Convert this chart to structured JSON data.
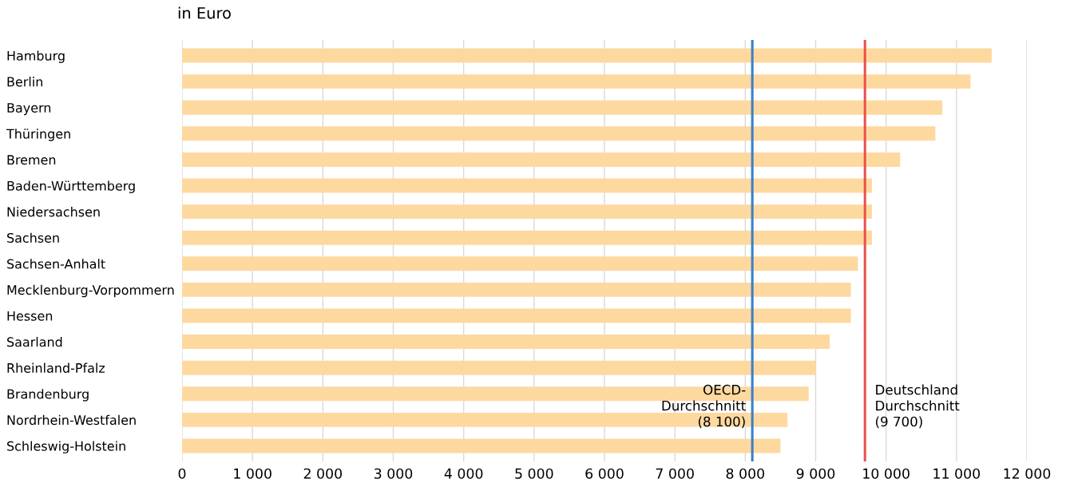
{
  "chart_data": {
    "type": "bar",
    "orientation": "horizontal",
    "title": "in Euro",
    "categories": [
      "Hamburg",
      "Berlin",
      "Bayern",
      "Thüringen",
      "Bremen",
      "Baden-Württemberg",
      "Niedersachsen",
      "Sachsen",
      "Sachsen-Anhalt",
      "Mecklenburg-Vorpommern",
      "Hessen",
      "Saarland",
      "Rheinland-Pfalz",
      "Brandenburg",
      "Nordrhein-Westfalen",
      "Schleswig-Holstein"
    ],
    "values": [
      11500,
      11200,
      10800,
      10700,
      10200,
      9800,
      9800,
      9800,
      9600,
      9500,
      9500,
      9200,
      9000,
      8900,
      8600,
      8500
    ],
    "color": "#fdd9a0",
    "xlim": [
      0,
      12000
    ],
    "xticks": [
      0,
      {
        "value": 1000,
        "label": "1 000"
      },
      {
        "value": 2000,
        "label": "2 000"
      },
      {
        "value": 3000,
        "label": "3 000"
      },
      {
        "value": 4000,
        "label": "4 000"
      },
      {
        "value": 5000,
        "label": "5 000"
      },
      {
        "value": 6000,
        "label": "6 000"
      },
      {
        "value": 7000,
        "label": "7 000"
      },
      {
        "value": 8000,
        "label": "8 000"
      },
      {
        "value": 9000,
        "label": "9 000"
      },
      {
        "value": 10000,
        "label": "10 000"
      },
      {
        "value": 11000,
        "label": "11 000"
      },
      {
        "value": 12000,
        "label": "12 000"
      }
    ],
    "ref_lines": [
      {
        "axis": "x",
        "value": 8100,
        "label": "OECD-\nDurchschnitt\n(8 100)",
        "color": "#3a7fc9"
      },
      {
        "axis": "x",
        "value": 9700,
        "label": "Deutschland\nDurchschnitt\n(9 700)",
        "color": "#e9524a"
      }
    ],
    "grid": "x"
  }
}
